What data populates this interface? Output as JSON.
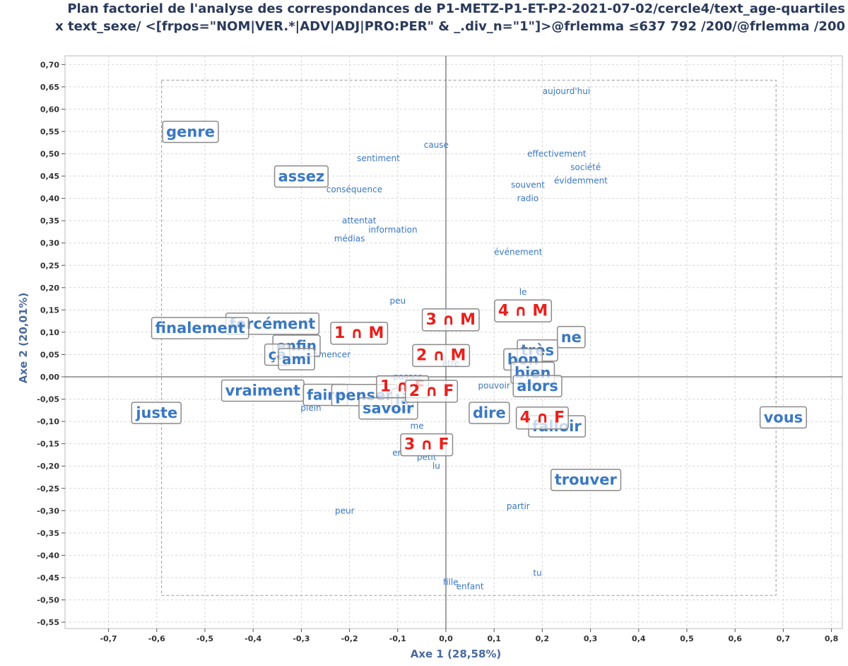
{
  "title": {
    "line1": "Plan factoriel de l'analyse des correspondances de P1-METZ-P1-ET-P2-2021-07-02/cercle4/text_age-quartiles",
    "line2": "x text_sexe/ <[frpos=\"NOM|VER.*|ADV|ADJ|PRO:PER\" & _.div_n=\"1\"]>@frlemma ≤637 792 /200/@frlemma /200"
  },
  "chart_data": {
    "type": "scatter",
    "xlabel": "Axe 1 (28,58%)",
    "ylabel": "Axe 2 (20,01%)",
    "xlim": [
      -0.8,
      0.8
    ],
    "ylim": [
      -0.55,
      0.7
    ],
    "xticks": [
      "-0,7",
      "-0,6",
      "-0,5",
      "-0,4",
      "-0,3",
      "-0,2",
      "-0,1",
      "0,0",
      "0,1",
      "0,2",
      "0,3",
      "0,4",
      "0,5",
      "0,6",
      "0,7",
      "0,8"
    ],
    "yticks": [
      "0,70",
      "0,65",
      "0,60",
      "0,55",
      "0,50",
      "0,45",
      "0,40",
      "0,35",
      "0,30",
      "0,25",
      "0,20",
      "0,15",
      "0,10",
      "0,05",
      "0,00",
      "-0,05",
      "-0,10",
      "-0,15",
      "-0,20",
      "-0,25",
      "-0,30",
      "-0,35",
      "-0,40",
      "-0,45",
      "-0,50",
      "-0,55"
    ],
    "grid": true,
    "colors": {
      "words": "#3a78c2",
      "modalities": "#e8201c",
      "box_border": "#8a8a8a"
    },
    "small_words": [
      {
        "label": "aujourd'hui",
        "x": 0.25,
        "y": 0.64
      },
      {
        "label": "cause",
        "x": -0.02,
        "y": 0.52
      },
      {
        "label": "sentiment",
        "x": -0.14,
        "y": 0.49
      },
      {
        "label": "effectivement",
        "x": 0.23,
        "y": 0.5
      },
      {
        "label": "société",
        "x": 0.29,
        "y": 0.47
      },
      {
        "label": "évidemment",
        "x": 0.28,
        "y": 0.44
      },
      {
        "label": "souvent",
        "x": 0.17,
        "y": 0.43
      },
      {
        "label": "conséquence",
        "x": -0.19,
        "y": 0.42
      },
      {
        "label": "radio",
        "x": 0.17,
        "y": 0.4
      },
      {
        "label": "attentat",
        "x": -0.18,
        "y": 0.35
      },
      {
        "label": "information",
        "x": -0.11,
        "y": 0.33
      },
      {
        "label": "médias",
        "x": -0.2,
        "y": 0.31
      },
      {
        "label": "événement",
        "x": 0.15,
        "y": 0.28
      },
      {
        "label": "le",
        "x": 0.16,
        "y": 0.19
      },
      {
        "label": "peu",
        "x": -0.1,
        "y": 0.17
      },
      {
        "label": "commencer",
        "x": -0.25,
        "y": 0.05
      },
      {
        "label": "être",
        "x": 0.01,
        "y": 0.03
      },
      {
        "label": "passer",
        "x": -0.08,
        "y": 0.0
      },
      {
        "label": "pouvoir",
        "x": 0.1,
        "y": -0.02
      },
      {
        "label": "plein",
        "x": -0.28,
        "y": -0.07
      },
      {
        "label": "me",
        "x": -0.06,
        "y": -0.11
      },
      {
        "label": "en",
        "x": -0.1,
        "y": -0.17
      },
      {
        "label": "petit",
        "x": -0.04,
        "y": -0.18
      },
      {
        "label": "lu",
        "x": -0.02,
        "y": -0.2
      },
      {
        "label": "peur",
        "x": -0.21,
        "y": -0.3
      },
      {
        "label": "partir",
        "x": 0.15,
        "y": -0.29
      },
      {
        "label": "tu",
        "x": 0.19,
        "y": -0.44
      },
      {
        "label": "fille",
        "x": 0.01,
        "y": -0.46
      },
      {
        "label": "enfant",
        "x": 0.05,
        "y": -0.47
      }
    ],
    "boxed_words": [
      {
        "label": "genre",
        "x": -0.53,
        "y": 0.55,
        "size": 21
      },
      {
        "label": "assez",
        "x": -0.3,
        "y": 0.45,
        "size": 21
      },
      {
        "label": "forcément",
        "x": -0.36,
        "y": 0.12,
        "size": 21
      },
      {
        "label": "finalement",
        "x": -0.51,
        "y": 0.11,
        "size": 21
      },
      {
        "label": "enfin",
        "x": -0.31,
        "y": 0.07,
        "size": 20
      },
      {
        "label": "ça",
        "x": -0.35,
        "y": 0.05,
        "size": 20
      },
      {
        "label": "ami",
        "x": -0.31,
        "y": 0.04,
        "size": 20
      },
      {
        "label": "vraiment",
        "x": -0.38,
        "y": -0.03,
        "size": 21
      },
      {
        "label": "faire",
        "x": -0.25,
        "y": -0.04,
        "size": 20
      },
      {
        "label": "penser",
        "x": -0.17,
        "y": -0.04,
        "size": 21
      },
      {
        "label": "là",
        "x": -0.09,
        "y": -0.05,
        "size": 20
      },
      {
        "label": "savoir",
        "x": -0.12,
        "y": -0.07,
        "size": 21
      },
      {
        "label": "juste",
        "x": -0.6,
        "y": -0.08,
        "size": 21
      },
      {
        "label": "très",
        "x": 0.19,
        "y": 0.06,
        "size": 21
      },
      {
        "label": "ne",
        "x": 0.26,
        "y": 0.09,
        "size": 21
      },
      {
        "label": "bon",
        "x": 0.16,
        "y": 0.04,
        "size": 21
      },
      {
        "label": "bien",
        "x": 0.18,
        "y": 0.01,
        "size": 21
      },
      {
        "label": "alors",
        "x": 0.19,
        "y": -0.02,
        "size": 21
      },
      {
        "label": "dire",
        "x": 0.09,
        "y": -0.08,
        "size": 21
      },
      {
        "label": "falloir",
        "x": 0.23,
        "y": -0.11,
        "size": 21
      },
      {
        "label": "trouver",
        "x": 0.29,
        "y": -0.23,
        "size": 21
      },
      {
        "label": "vous",
        "x": 0.7,
        "y": -0.09,
        "size": 21
      }
    ],
    "modalities": [
      {
        "label": "4 ∩ M",
        "x": 0.16,
        "y": 0.15
      },
      {
        "label": "3 ∩ M",
        "x": 0.01,
        "y": 0.13
      },
      {
        "label": "1 ∩ M",
        "x": -0.18,
        "y": 0.1
      },
      {
        "label": "2 ∩ M",
        "x": -0.01,
        "y": 0.05
      },
      {
        "label": "1 ∩ F",
        "x": -0.09,
        "y": -0.02
      },
      {
        "label": "2 ∩ F",
        "x": -0.03,
        "y": -0.03
      },
      {
        "label": "3 ∩ F",
        "x": -0.04,
        "y": -0.15
      },
      {
        "label": "4 ∩ F",
        "x": 0.2,
        "y": -0.09
      }
    ]
  }
}
